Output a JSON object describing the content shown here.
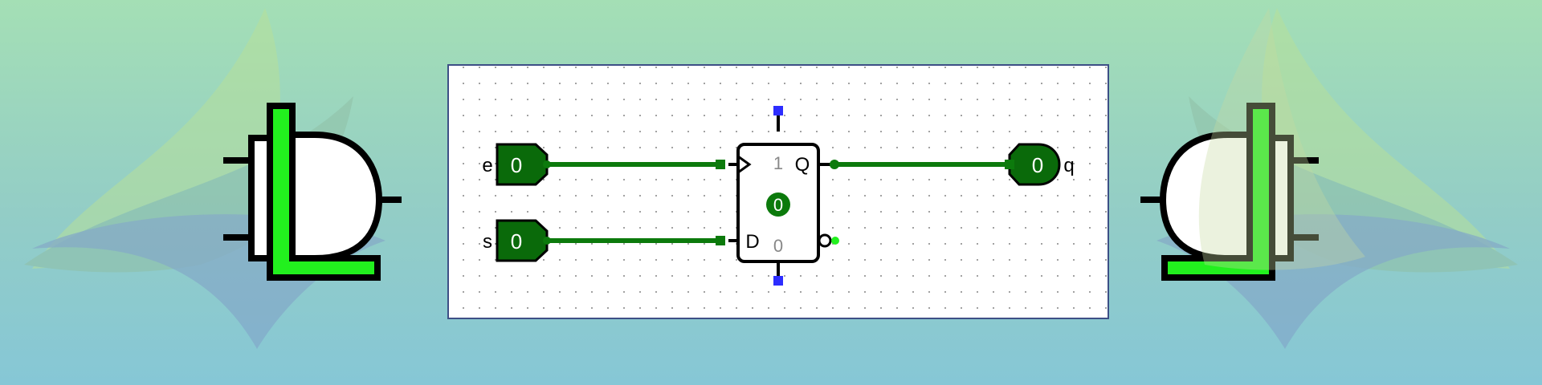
{
  "colors": {
    "wire_active": "#0c7a0c",
    "pin_fill": "#0a6a0a",
    "logo_green": "#22f01e",
    "pin_blue": "#2d2dff",
    "canvas_border": "#3d4f86"
  },
  "inputs": [
    {
      "name": "e",
      "value": "0"
    },
    {
      "name": "s",
      "value": "0"
    }
  ],
  "output": {
    "name": "q",
    "value": "0"
  },
  "flipflop": {
    "q_label": "Q",
    "d_label": "D",
    "q_state": "1",
    "d_state": "0",
    "value": "0"
  }
}
